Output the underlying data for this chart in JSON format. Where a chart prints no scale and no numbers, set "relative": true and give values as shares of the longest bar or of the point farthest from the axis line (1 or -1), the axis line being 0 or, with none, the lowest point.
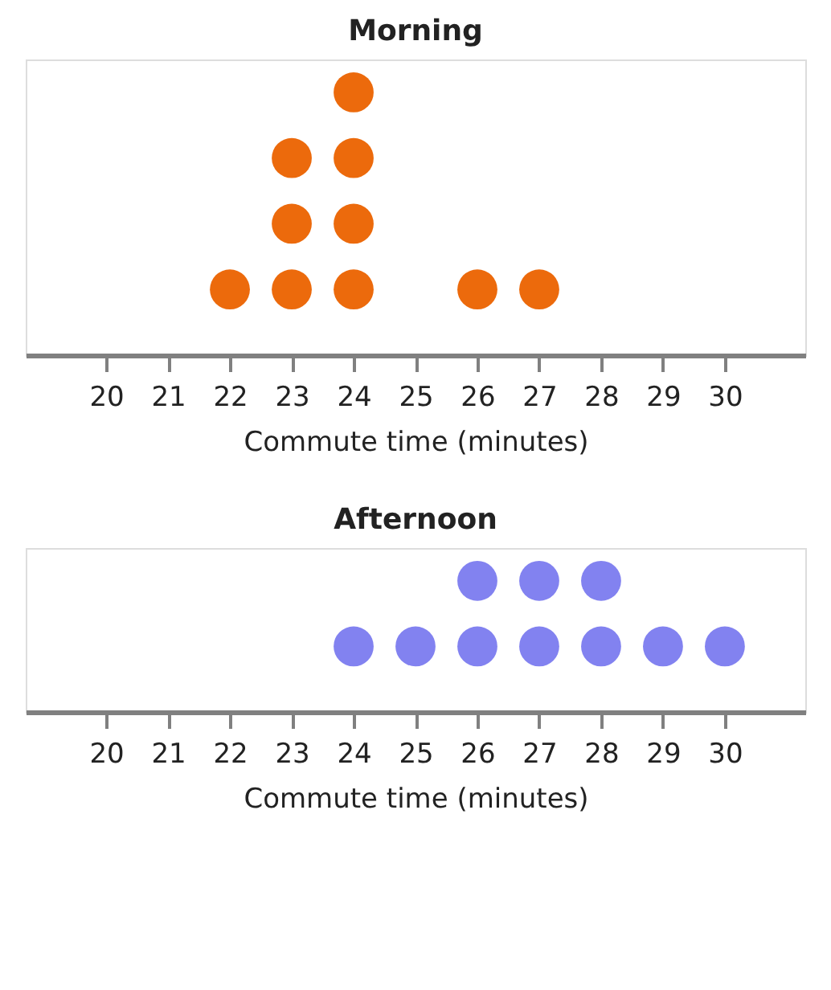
{
  "chart_data": [
    {
      "type": "scatter",
      "title": "Morning",
      "xlabel": "Commute time (minutes)",
      "x": [
        22,
        23,
        23,
        23,
        24,
        24,
        24,
        24,
        26,
        27
      ],
      "values": [
        0.25,
        0.25,
        0.5,
        0.75,
        0.25,
        0.5,
        0.75,
        1,
        0.25,
        0.25
      ],
      "relative": true,
      "color": "#ec6a0c",
      "marker": "circle",
      "xlim": [
        18.7,
        31.3
      ],
      "xticks": [
        20,
        21,
        22,
        23,
        24,
        25,
        26,
        27,
        28,
        29,
        30
      ],
      "tick_labels": "x",
      "grid": false
    },
    {
      "type": "scatter",
      "title": "Afternoon",
      "xlabel": "Commute time (minutes)",
      "x": [
        24,
        25,
        26,
        26,
        27,
        27,
        28,
        28,
        29,
        30
      ],
      "values": [
        0.5,
        0.5,
        0.5,
        1,
        0.5,
        1,
        0.5,
        1,
        0.5,
        0.5
      ],
      "relative": true,
      "color": "#8282f0",
      "marker": "circle",
      "xlim": [
        18.7,
        31.3
      ],
      "xticks": [
        20,
        21,
        22,
        23,
        24,
        25,
        26,
        27,
        28,
        29,
        30
      ],
      "tick_labels": "x",
      "grid": false
    }
  ]
}
